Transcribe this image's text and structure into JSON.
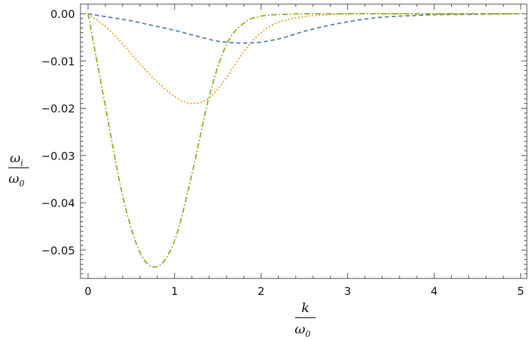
{
  "chart_data": {
    "type": "line",
    "xlabel": {
      "num": "k",
      "den_main": "ω",
      "den_sub": "0"
    },
    "ylabel": {
      "num_main": "ω",
      "num_sub": "i",
      "den_main": "ω",
      "den_sub": "0"
    },
    "xlim": [
      0,
      5
    ],
    "ylim": [
      -0.056,
      0.002
    ],
    "xticks": [
      0,
      1,
      2,
      3,
      4,
      5
    ],
    "xtick_labels": [
      "0",
      "1",
      "2",
      "3",
      "4",
      "5"
    ],
    "yticks": [
      0.0,
      -0.01,
      -0.02,
      -0.03,
      -0.04,
      -0.05
    ],
    "ytick_labels": [
      "0.00",
      "−0.01",
      "−0.02",
      "−0.03",
      "−0.04",
      "−0.05"
    ],
    "grid": false,
    "frame": true,
    "series": [
      {
        "color": "#5e81b5",
        "dash": "dashed",
        "x": [
          0,
          0.25,
          0.5,
          0.75,
          1.0,
          1.25,
          1.5,
          1.75,
          2.0,
          2.25,
          2.5,
          2.75,
          3.0,
          3.25,
          3.5,
          3.75,
          4.0,
          4.5,
          5.0
        ],
        "y": [
          0,
          -0.00075,
          -0.0015,
          -0.0025,
          -0.0035,
          -0.0047,
          -0.0058,
          -0.0062,
          -0.006,
          -0.0051,
          -0.0037,
          -0.0026,
          -0.0017,
          -0.001,
          -0.0006,
          -0.0004,
          -0.0002,
          -0.0001,
          0
        ]
      },
      {
        "color": "#e19c24",
        "dash": "dotted",
        "x": [
          0,
          0.25,
          0.5,
          0.75,
          1.0,
          1.2,
          1.4,
          1.6,
          1.8,
          2.0,
          2.2,
          2.5,
          2.8,
          3.0,
          3.5,
          4.0,
          5.0
        ],
        "y": [
          0,
          -0.0035,
          -0.0085,
          -0.0135,
          -0.0175,
          -0.019,
          -0.0178,
          -0.0135,
          -0.008,
          -0.004,
          -0.0018,
          -0.0006,
          -0.0002,
          0,
          0,
          0,
          0
        ]
      },
      {
        "color": "#8fb032",
        "dash": "dashdot",
        "x": [
          0,
          0.2,
          0.4,
          0.6,
          0.8,
          1.0,
          1.2,
          1.4,
          1.6,
          1.8,
          2.0,
          2.3,
          2.6,
          3.0,
          4.0,
          5.0
        ],
        "y": [
          0,
          -0.0195,
          -0.0385,
          -0.0505,
          -0.0535,
          -0.048,
          -0.034,
          -0.0175,
          -0.0065,
          -0.002,
          -0.0005,
          -0.0001,
          0,
          0,
          0,
          0
        ]
      }
    ]
  }
}
